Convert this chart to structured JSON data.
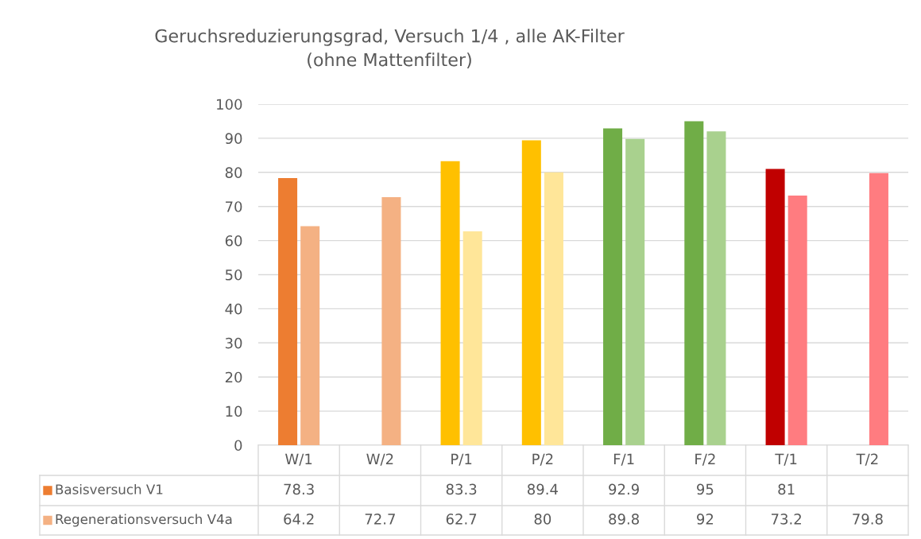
{
  "chart_data": {
    "type": "bar",
    "title": "Geruchsreduzierungsgrad, Versuch 1/4 , alle AK-Filter\n(ohne Mattenfilter)",
    "categories": [
      "W/1",
      "W/2",
      "P/1",
      "P/2",
      "F/1",
      "F/2",
      "T/1",
      "T/2"
    ],
    "series": [
      {
        "name": "Basisversuch V1",
        "values": [
          78.3,
          null,
          83.3,
          89.4,
          92.9,
          95,
          81,
          null
        ],
        "colors": [
          "#ed7d31",
          "#ed7d31",
          "#ffc000",
          "#ffc000",
          "#70ad47",
          "#70ad47",
          "#c00000",
          "#c00000"
        ]
      },
      {
        "name": "Regenerationsversuch V4a",
        "values": [
          64.2,
          72.7,
          62.7,
          80,
          89.8,
          92,
          73.2,
          79.8
        ],
        "colors": [
          "#f4b183",
          "#f4b183",
          "#ffe699",
          "#ffe699",
          "#a9d18e",
          "#a9d18e",
          "#ff7c80",
          "#ff7c80"
        ]
      }
    ],
    "ylim": [
      0,
      100
    ],
    "yticks": [
      0,
      10,
      20,
      30,
      40,
      50,
      60,
      70,
      80,
      90,
      100
    ],
    "grid": "y",
    "data_labels": true,
    "legend": "bottom left"
  }
}
